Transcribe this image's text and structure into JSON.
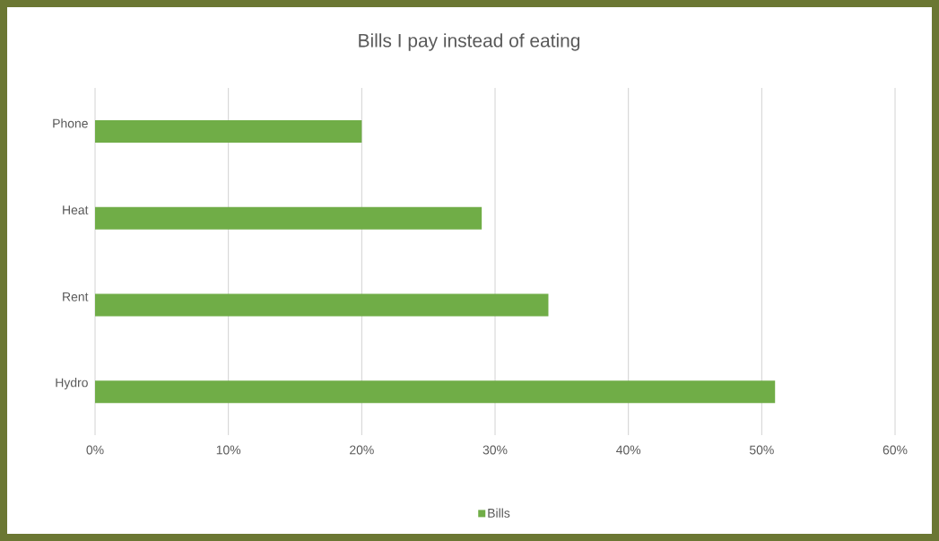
{
  "chart_data": {
    "type": "bar",
    "orientation": "horizontal",
    "title": "Bills I pay instead of eating",
    "categories": [
      "Phone",
      "Heat",
      "Rent",
      "Hydro"
    ],
    "series": [
      {
        "name": "Bills",
        "color": "#70ad47",
        "values": [
          20,
          29,
          34,
          51
        ]
      }
    ],
    "xlim": [
      0,
      60
    ],
    "xticks": [
      {
        "value": 0,
        "label": "0%"
      },
      {
        "value": 10,
        "label": "10%"
      },
      {
        "value": 20,
        "label": "20%"
      },
      {
        "value": 30,
        "label": "30%"
      },
      {
        "value": 40,
        "label": "40%"
      },
      {
        "value": 50,
        "label": "50%"
      },
      {
        "value": 60,
        "label": "60%"
      }
    ],
    "grid": "x",
    "legend": "bottom"
  }
}
